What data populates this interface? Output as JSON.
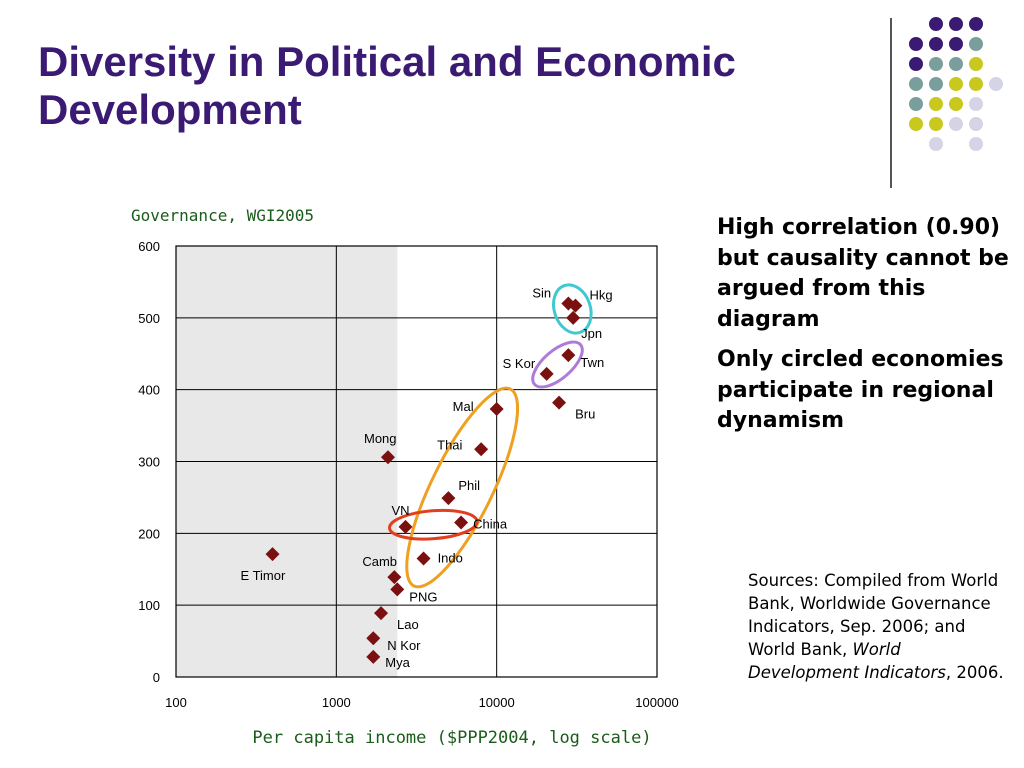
{
  "slide": {
    "title_line1": "Diversity in Political and Economic",
    "title_line2": "Development",
    "bullet1": "High correlation (0.90) but causality cannot be argued from this diagram",
    "bullet2": "Only circled economies participate in regional dynamism",
    "sources_prefix": "Sources: Compiled from World Bank, Worldwide Governance Indicators, Sep. 2006; and World Bank, ",
    "sources_italic": "World Development Indicators",
    "sources_suffix": ", 2006."
  },
  "theme": {
    "title_color": "#3b1a73",
    "marker_color": "#7b1010",
    "axis_title_color": "#1a5c1a",
    "shade_color": "#e8e8e8",
    "dot_colors": {
      "purple": "#3b1a73",
      "teal": "#7a9e9c",
      "yellow": "#c8c81e",
      "lavender": "#d4d4e6"
    }
  },
  "chart_data": {
    "type": "scatter",
    "ylabel": "Governance, WGI2005",
    "xlabel": "Per capita income ($PPP2004, log scale)",
    "x_scale": "log",
    "xlim": [
      100,
      100000
    ],
    "ylim": [
      0,
      600
    ],
    "x_ticks": [
      "100",
      "1000",
      "10000",
      "100000"
    ],
    "y_ticks": [
      "0",
      "100",
      "200",
      "300",
      "400",
      "500",
      "600"
    ],
    "grid": true,
    "shaded_region_x": [
      100,
      2400
    ],
    "points": [
      {
        "label": "Sin",
        "x": 28000,
        "y": 520
      },
      {
        "label": "Hkg",
        "x": 31000,
        "y": 517
      },
      {
        "label": "Jpn",
        "x": 30000,
        "y": 500
      },
      {
        "label": "Twn",
        "x": 28000,
        "y": 448
      },
      {
        "label": "S Kor",
        "x": 20500,
        "y": 422
      },
      {
        "label": "Bru",
        "x": 24500,
        "y": 382
      },
      {
        "label": "Mal",
        "x": 10000,
        "y": 373
      },
      {
        "label": "Thai",
        "x": 8000,
        "y": 317
      },
      {
        "label": "Mong",
        "x": 2100,
        "y": 306
      },
      {
        "label": "Phil",
        "x": 5000,
        "y": 249
      },
      {
        "label": "China",
        "x": 6000,
        "y": 215
      },
      {
        "label": "VN",
        "x": 2700,
        "y": 209
      },
      {
        "label": "E Timor",
        "x": 400,
        "y": 171
      },
      {
        "label": "Indo",
        "x": 3500,
        "y": 165
      },
      {
        "label": "Camb",
        "x": 2300,
        "y": 139
      },
      {
        "label": "PNG",
        "x": 2400,
        "y": 122
      },
      {
        "label": "Lao",
        "x": 1900,
        "y": 89
      },
      {
        "label": "N Kor",
        "x": 1700,
        "y": 54
      },
      {
        "label": "Mya",
        "x": 1700,
        "y": 28
      }
    ],
    "annotations": [
      {
        "shape": "ellipse",
        "color": "#40c8d0",
        "encloses": [
          "Sin",
          "Hkg",
          "Jpn"
        ]
      },
      {
        "shape": "ellipse",
        "color": "#b07ad8",
        "encloses": [
          "S Kor",
          "Twn"
        ]
      },
      {
        "shape": "ellipse",
        "color": "#f0a020",
        "encloses": [
          "Mal",
          "Thai",
          "Phil",
          "China",
          "Indo"
        ]
      },
      {
        "shape": "ellipse",
        "color": "#e04020",
        "encloses": [
          "VN",
          "China"
        ]
      }
    ]
  }
}
